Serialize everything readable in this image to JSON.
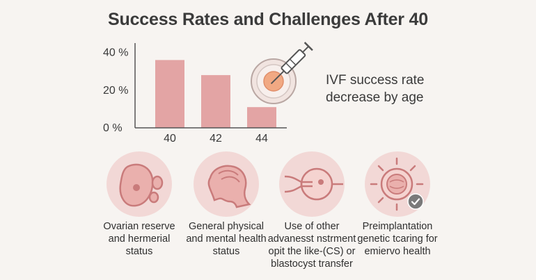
{
  "title": "Success Rates and Challenges After 40",
  "chart_data": {
    "type": "bar",
    "categories": [
      "40",
      "42",
      "44"
    ],
    "values": [
      36,
      28,
      11
    ],
    "yticks": [
      "0 %",
      "20 %",
      "40 %"
    ],
    "ytick_values": [
      0,
      20,
      40
    ],
    "ylim": [
      0,
      45
    ],
    "title": "",
    "xlabel": "",
    "ylabel": "",
    "grid": false,
    "bar_color": "#e3a4a4"
  },
  "ivf_note": "IVF success rate decrease by age",
  "factors": [
    {
      "icon": "ovary-icon",
      "caption": "Ovarian reserve and hermerial status"
    },
    {
      "icon": "head-profile-icon",
      "caption": "General physical and mental health status"
    },
    {
      "icon": "icsi-needle-egg-icon",
      "caption": "Use of other advanesst nstrment opit the like-(CS) or blastocyst transfer"
    },
    {
      "icon": "embryo-check-icon",
      "caption": "Preimplantation genetic tcaring for emiervo health"
    }
  ],
  "colors": {
    "accent": "#e3a4a4",
    "icon_bg": "#f2d8d6",
    "icon_stroke": "#c97b7b",
    "text": "#3a3a3a"
  }
}
